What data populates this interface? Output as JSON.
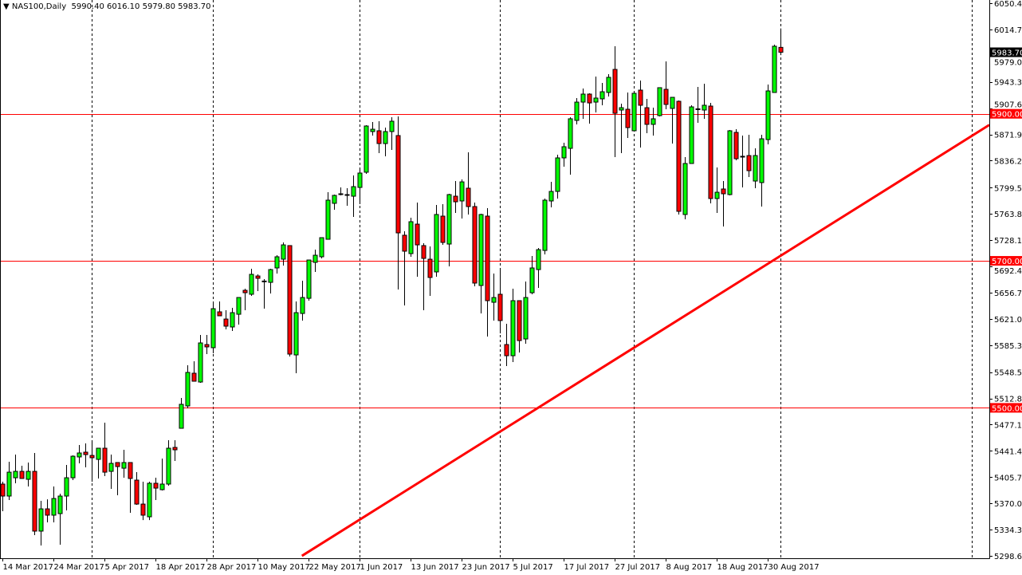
{
  "header": {
    "symbol": "NAS100,Daily",
    "open": "5990.40",
    "high": "6016.10",
    "low": "5979.80",
    "close": "5983.70"
  },
  "chart_data": {
    "type": "candlestick",
    "title": "NAS100,Daily",
    "colors": {
      "bull": "#00ff00",
      "bear": "#ff0000",
      "wick": "#000000",
      "trendline": "#ff0000",
      "level_line": "#ff0000",
      "level_label_bg": "#ff0000",
      "price_label_bg": "#000000"
    },
    "ylim": [
      5298.65,
      6050.45
    ],
    "y_ticks": [
      "6050.45",
      "6014.75",
      "5979.05",
      "5943.35",
      "5907.65",
      "5871.95",
      "5836.25",
      "5799.50",
      "5763.80",
      "5728.10",
      "5692.40",
      "5656.70",
      "5621.00",
      "5585.30",
      "5548.55",
      "5512.85",
      "5477.15",
      "5441.45",
      "5405.75",
      "5370.05",
      "5334.35",
      "5298.65"
    ],
    "x_labels": [
      {
        "label": "14 Mar 2017",
        "index": 0
      },
      {
        "label": "24 Mar 2017",
        "index": 8
      },
      {
        "label": "5 Apr 2017",
        "index": 16
      },
      {
        "label": "18 Apr 2017",
        "index": 24
      },
      {
        "label": "28 Apr 2017",
        "index": 32
      },
      {
        "label": "10 May 2017",
        "index": 40
      },
      {
        "label": "22 May 2017",
        "index": 48
      },
      {
        "label": "1 Jun 2017",
        "index": 56
      },
      {
        "label": "13 Jun 2017",
        "index": 64
      },
      {
        "label": "23 Jun 2017",
        "index": 72
      },
      {
        "label": "5 Jul 2017",
        "index": 80
      },
      {
        "label": "17 Jul 2017",
        "index": 88
      },
      {
        "label": "27 Jul 2017",
        "index": 96
      },
      {
        "label": "8 Aug 2017",
        "index": 104
      },
      {
        "label": "18 Aug 2017",
        "index": 112
      },
      {
        "label": "30 Aug 2017",
        "index": 120
      }
    ],
    "period_separators": [
      14,
      33,
      56,
      78,
      99,
      122,
      152
    ],
    "levels": [
      {
        "price": 5900.0,
        "label": "5900.00"
      },
      {
        "price": 5700.0,
        "label": "5700.00"
      },
      {
        "price": 5500.0,
        "label": "5500.00"
      }
    ],
    "current_price": {
      "price": 5983.7,
      "label": "5983.70"
    },
    "trendline": [
      {
        "index": 47,
        "price": 5298.65
      },
      {
        "index": 155,
        "price": 5886.0
      }
    ],
    "ohlc": [
      [
        5396.3,
        5399.5,
        5359.4,
        5380.0
      ],
      [
        5380.0,
        5426.6,
        5374.6,
        5412.5
      ],
      [
        5404.9,
        5436.4,
        5397.4,
        5413.6
      ],
      [
        5413.6,
        5421.2,
        5403.9,
        5403.9
      ],
      [
        5402.8,
        5425.6,
        5393.0,
        5413.6
      ],
      [
        5413.6,
        5438.6,
        5326.8,
        5332.3
      ],
      [
        5332.3,
        5373.5,
        5312.7,
        5362.6
      ],
      [
        5362.6,
        5375.6,
        5344.2,
        5354.0
      ],
      [
        5354.0,
        5393.0,
        5344.2,
        5376.7
      ],
      [
        5356.1,
        5383.2,
        5313.8,
        5380.0
      ],
      [
        5380.0,
        5422.3,
        5360.5,
        5404.9
      ],
      [
        5404.9,
        5435.3,
        5401.7,
        5434.2
      ],
      [
        5433.2,
        5449.4,
        5424.5,
        5438.6
      ],
      [
        5439.7,
        5451.6,
        5419.1,
        5436.4
      ],
      [
        5435.3,
        5453.8,
        5399.5,
        5432.1
      ],
      [
        5429.9,
        5445.1,
        5403.9,
        5445.1
      ],
      [
        5445.1,
        5479.8,
        5407.1,
        5412.5
      ],
      [
        5413.6,
        5436.4,
        5389.8,
        5424.5
      ],
      [
        5425.6,
        5425.6,
        5381.1,
        5420.1
      ],
      [
        5417.9,
        5442.9,
        5404.9,
        5425.6
      ],
      [
        5425.6,
        5425.6,
        5357.2,
        5403.9
      ],
      [
        5401.7,
        5412.5,
        5368.1,
        5369.1
      ],
      [
        5369.1,
        5399.5,
        5347.4,
        5354.0
      ],
      [
        5351.8,
        5399.5,
        5347.4,
        5397.4
      ],
      [
        5397.4,
        5404.9,
        5374.6,
        5390.8
      ],
      [
        5388.7,
        5431.0,
        5387.6,
        5396.3
      ],
      [
        5396.3,
        5455.9,
        5394.1,
        5445.1
      ],
      [
        5446.2,
        5455.9,
        5427.7,
        5442.9
      ],
      [
        5472.2,
        5513.4,
        5472.2,
        5504.8
      ],
      [
        5502.6,
        5557.9,
        5499.3,
        5548.2
      ],
      [
        5547.1,
        5563.3,
        5536.2,
        5536.2
      ],
      [
        5535.1,
        5599.1,
        5534.0,
        5588.3
      ],
      [
        5586.1,
        5599.1,
        5573.1,
        5582.9
      ],
      [
        5581.8,
        5642.5,
        5574.2,
        5634.9
      ],
      [
        5630.6,
        5644.7,
        5625.2,
        5625.2
      ],
      [
        5620.8,
        5632.8,
        5606.7,
        5611.1
      ],
      [
        5610.0,
        5636.0,
        5604.6,
        5629.5
      ],
      [
        5627.3,
        5650.1,
        5613.2,
        5650.1
      ],
      [
        5659.9,
        5662.1,
        5632.8,
        5656.6
      ],
      [
        5654.5,
        5689.2,
        5652.3,
        5681.6
      ],
      [
        5679.4,
        5681.6,
        5658.8,
        5676.2
      ],
      [
        5671.8,
        5675.1,
        5634.9,
        5672.5
      ],
      [
        5670.7,
        5689.2,
        5655.6,
        5688.1
      ],
      [
        5690.3,
        5707.6,
        5682.7,
        5705.5
      ],
      [
        5702.2,
        5725.0,
        5693.5,
        5721.7
      ],
      [
        5720.7,
        5720.7,
        5569.8,
        5573.1
      ],
      [
        5572.0,
        5644.7,
        5547.1,
        5629.5
      ],
      [
        5628.4,
        5672.9,
        5618.7,
        5650.1
      ],
      [
        5649.0,
        5701.1,
        5645.8,
        5701.1
      ],
      [
        5697.9,
        5715.2,
        5684.9,
        5707.6
      ],
      [
        5705.5,
        5731.5,
        5703.3,
        5731.5
      ],
      [
        5729.3,
        5793.3,
        5729.3,
        5782.5
      ],
      [
        5778.2,
        5790.1,
        5769.5,
        5789.0
      ],
      [
        5791.2,
        5799.8,
        5789.0,
        5790.6
      ],
      [
        5790.1,
        5798.8,
        5774.9,
        5789.5
      ],
      [
        5787.9,
        5816.1,
        5759.7,
        5800.9
      ],
      [
        5799.8,
        5825.9,
        5777.1,
        5819.4
      ],
      [
        5820.5,
        5884.5,
        5818.3,
        5883.4
      ],
      [
        5875.8,
        5888.8,
        5870.4,
        5879.0
      ],
      [
        5876.9,
        5889.9,
        5846.5,
        5859.5
      ],
      [
        5859.5,
        5881.2,
        5842.2,
        5875.8
      ],
      [
        5875.8,
        5895.3,
        5850.8,
        5889.9
      ],
      [
        5870.4,
        5896.4,
        5661.0,
        5738.0
      ],
      [
        5734.8,
        5740.2,
        5639.3,
        5713.1
      ],
      [
        5709.8,
        5758.6,
        5705.5,
        5753.2
      ],
      [
        5749.9,
        5779.2,
        5678.3,
        5721.7
      ],
      [
        5720.7,
        5723.9,
        5632.8,
        5703.3
      ],
      [
        5702.2,
        5719.6,
        5652.3,
        5677.3
      ],
      [
        5684.9,
        5776.0,
        5678.3,
        5763.0
      ],
      [
        5760.8,
        5777.1,
        5721.7,
        5725.0
      ],
      [
        5722.8,
        5791.2,
        5692.4,
        5790.1
      ],
      [
        5787.9,
        5808.5,
        5765.1,
        5780.3
      ],
      [
        5781.4,
        5810.7,
        5757.5,
        5807.4
      ],
      [
        5798.8,
        5847.6,
        5763.0,
        5773.8
      ],
      [
        5773.8,
        5779.2,
        5665.3,
        5669.7
      ],
      [
        5666.4,
        5764.0,
        5628.4,
        5763.0
      ],
      [
        5760.8,
        5771.6,
        5597.0,
        5645.8
      ],
      [
        5643.6,
        5682.7,
        5618.7,
        5650.1
      ],
      [
        5654.5,
        5688.1,
        5601.3,
        5618.7
      ],
      [
        5586.1,
        5614.3,
        5556.8,
        5570.9
      ],
      [
        5570.9,
        5662.1,
        5562.3,
        5645.8
      ],
      [
        5645.8,
        5645.8,
        5575.3,
        5591.5
      ],
      [
        5593.7,
        5671.8,
        5587.2,
        5650.1
      ],
      [
        5656.6,
        5706.5,
        5654.5,
        5690.3
      ],
      [
        5688.1,
        5717.4,
        5663.2,
        5715.2
      ],
      [
        5714.1,
        5784.7,
        5708.7,
        5782.5
      ],
      [
        5781.4,
        5807.4,
        5772.7,
        5794.4
      ],
      [
        5794.4,
        5844.3,
        5784.7,
        5840.0
      ],
      [
        5840.0,
        5860.6,
        5828.1,
        5855.2
      ],
      [
        5853.0,
        5895.3,
        5817.2,
        5893.2
      ],
      [
        5891.0,
        5921.4,
        5885.6,
        5915.9
      ],
      [
        5915.9,
        5934.4,
        5893.2,
        5926.8
      ],
      [
        5926.8,
        5927.9,
        5886.6,
        5914.8
      ],
      [
        5915.9,
        5950.6,
        5901.8,
        5921.4
      ],
      [
        5920.3,
        5942.0,
        5911.6,
        5930.0
      ],
      [
        5929.0,
        5953.9,
        5923.5,
        5949.6
      ],
      [
        5960.4,
        5991.9,
        5841.1,
        5900.7
      ],
      [
        5905.1,
        5913.8,
        5846.5,
        5908.3
      ],
      [
        5906.2,
        5929.0,
        5867.1,
        5881.2
      ],
      [
        5876.9,
        5927.9,
        5876.9,
        5927.9
      ],
      [
        5932.2,
        5945.2,
        5854.1,
        5911.6
      ],
      [
        5908.3,
        5920.3,
        5873.6,
        5885.6
      ],
      [
        5885.6,
        5908.3,
        5870.4,
        5893.2
      ],
      [
        5897.5,
        5935.5,
        5896.4,
        5935.5
      ],
      [
        5933.3,
        5971.3,
        5906.2,
        5912.7
      ],
      [
        5907.3,
        5922.4,
        5859.5,
        5922.4
      ],
      [
        5917.0,
        5918.1,
        5763.0,
        5767.3
      ],
      [
        5763.0,
        5841.1,
        5756.5,
        5832.4
      ],
      [
        5832.4,
        5911.6,
        5832.4,
        5909.4
      ],
      [
        5906.2,
        5936.5,
        5887.7,
        5906.8
      ],
      [
        5905.1,
        5940.9,
        5893.2,
        5911.6
      ],
      [
        5910.5,
        5914.8,
        5778.2,
        5784.7
      ],
      [
        5784.7,
        5827.0,
        5765.1,
        5793.3
      ],
      [
        5797.7,
        5808.5,
        5746.7,
        5791.2
      ],
      [
        5790.1,
        5878.0,
        5789.0,
        5876.9
      ],
      [
        5874.7,
        5879.0,
        5836.7,
        5838.9
      ],
      [
        5842.2,
        5870.4,
        5799.8,
        5841.6
      ],
      [
        5843.2,
        5871.5,
        5814.0,
        5822.6
      ],
      [
        5808.5,
        5853.0,
        5798.8,
        5843.2
      ],
      [
        5806.4,
        5871.5,
        5773.8,
        5866.0
      ],
      [
        5864.9,
        5939.8,
        5858.4,
        5931.1
      ],
      [
        5929.0,
        5994.0,
        5929.0,
        5991.9
      ],
      [
        5990.4,
        6016.1,
        5979.8,
        5983.7
      ]
    ]
  }
}
